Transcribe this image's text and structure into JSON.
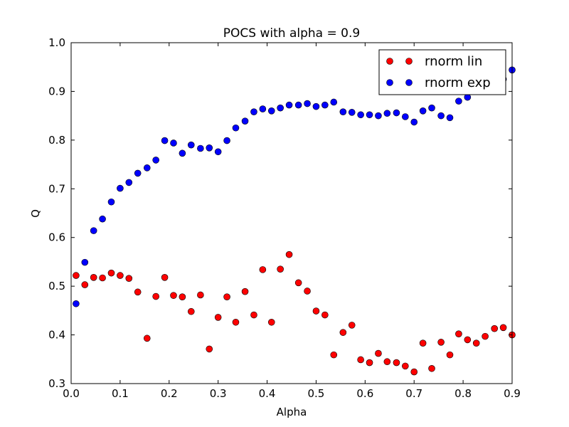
{
  "chart_data": {
    "type": "scatter",
    "title": "POCS with alpha = 0.9",
    "xlabel": "Alpha",
    "ylabel": "Q",
    "xlim": [
      0,
      0.9
    ],
    "ylim": [
      0.3,
      1.0
    ],
    "xticks": [
      "0.0",
      "0.1",
      "0.2",
      "0.3",
      "0.4",
      "0.5",
      "0.6",
      "0.7",
      "0.8",
      "0.9"
    ],
    "yticks": [
      "0.3",
      "0.4",
      "0.5",
      "0.6",
      "0.7",
      "0.8",
      "0.9",
      "1.0"
    ],
    "grid": false,
    "legend_position": "top-right",
    "series": [
      {
        "name": "rnorm lin",
        "color": "#ff0000",
        "x": [
          0.01,
          0.028,
          0.046,
          0.064,
          0.082,
          0.1,
          0.118,
          0.136,
          0.155,
          0.173,
          0.191,
          0.209,
          0.227,
          0.245,
          0.264,
          0.282,
          0.3,
          0.318,
          0.336,
          0.355,
          0.373,
          0.391,
          0.409,
          0.427,
          0.445,
          0.464,
          0.482,
          0.5,
          0.518,
          0.536,
          0.555,
          0.573,
          0.591,
          0.609,
          0.627,
          0.645,
          0.664,
          0.682,
          0.7,
          0.718,
          0.736,
          0.755,
          0.773,
          0.791,
          0.809,
          0.827,
          0.845,
          0.864,
          0.882,
          0.9
        ],
        "y": [
          0.522,
          0.503,
          0.518,
          0.517,
          0.527,
          0.522,
          0.516,
          0.488,
          0.393,
          0.479,
          0.518,
          0.481,
          0.478,
          0.448,
          0.482,
          0.371,
          0.436,
          0.478,
          0.426,
          0.489,
          0.441,
          0.534,
          0.426,
          0.535,
          0.565,
          0.507,
          0.49,
          0.449,
          0.441,
          0.359,
          0.405,
          0.42,
          0.349,
          0.343,
          0.362,
          0.345,
          0.343,
          0.336,
          0.324,
          0.383,
          0.331,
          0.385,
          0.359,
          0.402,
          0.39,
          0.383,
          0.397,
          0.413,
          0.415,
          0.4
        ]
      },
      {
        "name": "rnorm exp",
        "color": "#0000ff",
        "x": [
          0.01,
          0.028,
          0.046,
          0.064,
          0.082,
          0.1,
          0.118,
          0.136,
          0.155,
          0.173,
          0.191,
          0.209,
          0.227,
          0.245,
          0.264,
          0.282,
          0.3,
          0.318,
          0.336,
          0.355,
          0.373,
          0.391,
          0.409,
          0.427,
          0.445,
          0.464,
          0.482,
          0.5,
          0.518,
          0.536,
          0.555,
          0.573,
          0.591,
          0.609,
          0.627,
          0.645,
          0.664,
          0.682,
          0.7,
          0.718,
          0.736,
          0.755,
          0.773,
          0.791,
          0.809,
          0.827,
          0.845,
          0.864,
          0.882,
          0.9
        ],
        "y": [
          0.464,
          0.549,
          0.614,
          0.638,
          0.673,
          0.701,
          0.713,
          0.732,
          0.743,
          0.759,
          0.799,
          0.794,
          0.773,
          0.79,
          0.783,
          0.784,
          0.776,
          0.799,
          0.825,
          0.839,
          0.858,
          0.864,
          0.86,
          0.866,
          0.872,
          0.872,
          0.875,
          0.869,
          0.872,
          0.878,
          0.858,
          0.857,
          0.852,
          0.852,
          0.85,
          0.855,
          0.856,
          0.848,
          0.837,
          0.86,
          0.866,
          0.85,
          0.846,
          0.88,
          0.888,
          0.905,
          0.916,
          0.921,
          0.925,
          0.944
        ]
      }
    ]
  }
}
